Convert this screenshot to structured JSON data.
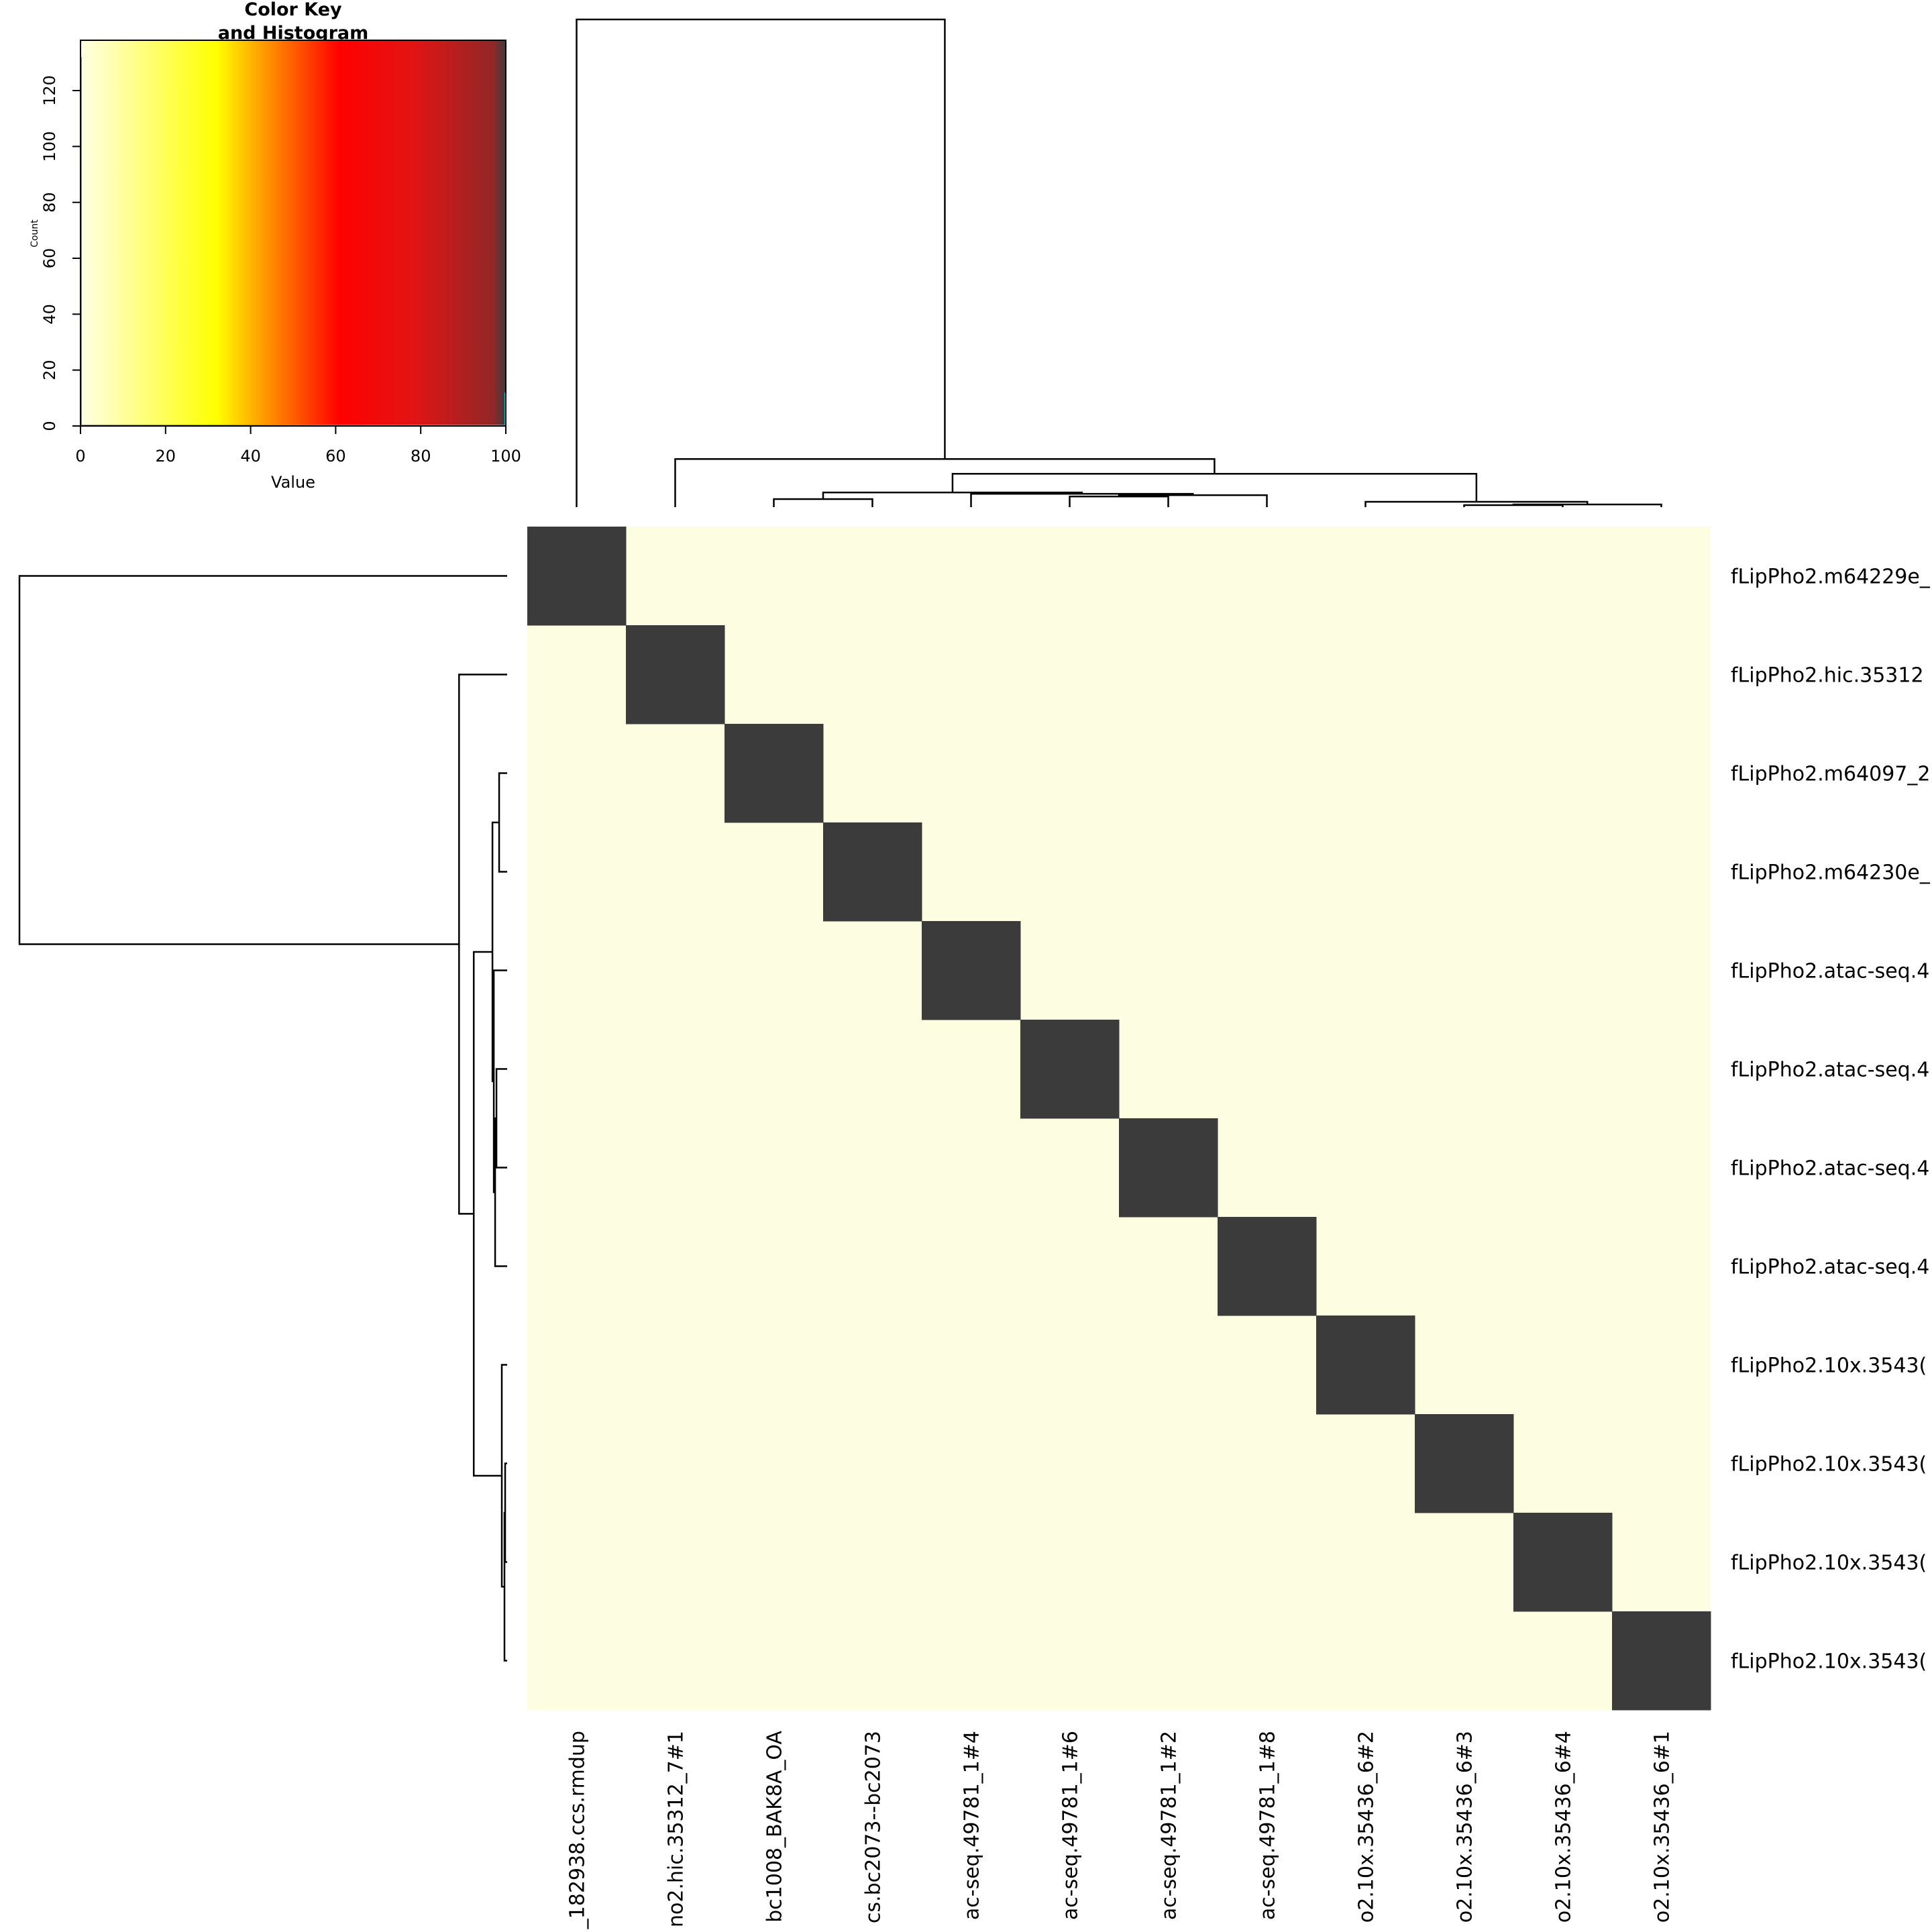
{
  "chart_data": {
    "type": "heatmap",
    "row_labels": [
      "fLipPho2.m64229e_",
      "fLipPho2.hic.35312",
      "fLipPho2.m64097_2",
      "fLipPho2.m64230e_",
      "fLipPho2.atac-seq.4",
      "fLipPho2.atac-seq.4",
      "fLipPho2.atac-seq.4",
      "fLipPho2.atac-seq.4",
      "fLipPho2.10x.3543(",
      "fLipPho2.10x.3543(",
      "fLipPho2.10x.3543(",
      "fLipPho2.10x.3543("
    ],
    "col_labels": [
      "_182938.ccs.rmdup",
      "no2.hic.35312_7#1",
      "bc1008_BAK8A_OA",
      "cs.bc2073--bc2073",
      "ac-seq.49781_1#4",
      "ac-seq.49781_1#6",
      "ac-seq.49781_1#2",
      "ac-seq.49781_1#8",
      "o2.10x.35436_6#2",
      "o2.10x.35436_6#3",
      "o2.10x.35436_6#4",
      "o2.10x.35436_6#1"
    ],
    "values": [
      [
        100,
        0,
        0,
        0,
        0,
        0,
        0,
        0,
        0,
        0,
        0,
        0
      ],
      [
        0,
        100,
        0,
        0,
        0,
        0,
        0,
        0,
        0,
        0,
        0,
        0
      ],
      [
        0,
        0,
        100,
        0,
        0,
        0,
        0,
        0,
        0,
        0,
        0,
        0
      ],
      [
        0,
        0,
        0,
        100,
        0,
        0,
        0,
        0,
        0,
        0,
        0,
        0
      ],
      [
        0,
        0,
        0,
        0,
        100,
        0,
        0,
        0,
        0,
        0,
        0,
        0
      ],
      [
        0,
        0,
        0,
        0,
        0,
        100,
        0,
        0,
        0,
        0,
        0,
        0
      ],
      [
        0,
        0,
        0,
        0,
        0,
        0,
        100,
        0,
        0,
        0,
        0,
        0
      ],
      [
        0,
        0,
        0,
        0,
        0,
        0,
        0,
        100,
        0,
        0,
        0,
        0
      ],
      [
        0,
        0,
        0,
        0,
        0,
        0,
        0,
        0,
        100,
        0,
        0,
        0
      ],
      [
        0,
        0,
        0,
        0,
        0,
        0,
        0,
        0,
        0,
        100,
        0,
        0
      ],
      [
        0,
        0,
        0,
        0,
        0,
        0,
        0,
        0,
        0,
        0,
        100,
        0
      ],
      [
        0,
        0,
        0,
        0,
        0,
        0,
        0,
        0,
        0,
        0,
        0,
        100
      ]
    ],
    "dendrogram": {
      "leaf_order": [
        0,
        1,
        2,
        3,
        4,
        5,
        6,
        7,
        8,
        9,
        10,
        11
      ],
      "merges": [
        {
          "a": 9,
          "b": 10,
          "height": 0.3
        },
        {
          "a": 11,
          "b": "m0",
          "height": 0.4
        },
        {
          "a": 8,
          "b": "m1",
          "height": 0.8
        },
        {
          "a": 2,
          "b": 3,
          "height": 1.2
        },
        {
          "a": 5,
          "b": 6,
          "height": 1.6
        },
        {
          "a": 7,
          "b": "m4",
          "height": 1.8
        },
        {
          "a": 4,
          "b": "m5",
          "height": 2.0
        },
        {
          "a": "m3",
          "b": "m6",
          "height": 2.2
        },
        {
          "a": "m7",
          "b": "m2",
          "height": 5.0
        },
        {
          "a": 1,
          "b": "m8",
          "height": 7.2
        },
        {
          "a": 0,
          "b": "m9",
          "height": 73.0
        }
      ],
      "max_height": 73.0
    },
    "color_key": {
      "title": "Color Key\nand Histogram",
      "title_lines": [
        "Color Key",
        "and Histogram"
      ],
      "xlabel": "Value",
      "ylabel": "Count",
      "xlim": [
        0,
        100
      ],
      "ylim": [
        0,
        138
      ],
      "x_ticks": [
        "0",
        "20",
        "40",
        "60",
        "80",
        "100"
      ],
      "y_ticks": [
        "0",
        "20",
        "40",
        "60",
        "80",
        "100",
        "120"
      ],
      "histogram": [
        {
          "value": 0,
          "count": 132
        },
        {
          "value": 100,
          "count": 12
        }
      ],
      "histogram_color": "#00cdcd",
      "gradient": [
        {
          "value": 0,
          "color": "#ffffe6"
        },
        {
          "value": 32,
          "color": "#ffff00"
        },
        {
          "value": 46,
          "color": "#ff8000"
        },
        {
          "value": 61,
          "color": "#ff0000"
        },
        {
          "value": 78,
          "color": "#e31414"
        },
        {
          "value": 97,
          "color": "#922727"
        },
        {
          "value": 100,
          "color": "#3c3c3c"
        }
      ]
    },
    "low_color": "#fdfde1",
    "high_color": "#3b3b3b"
  }
}
